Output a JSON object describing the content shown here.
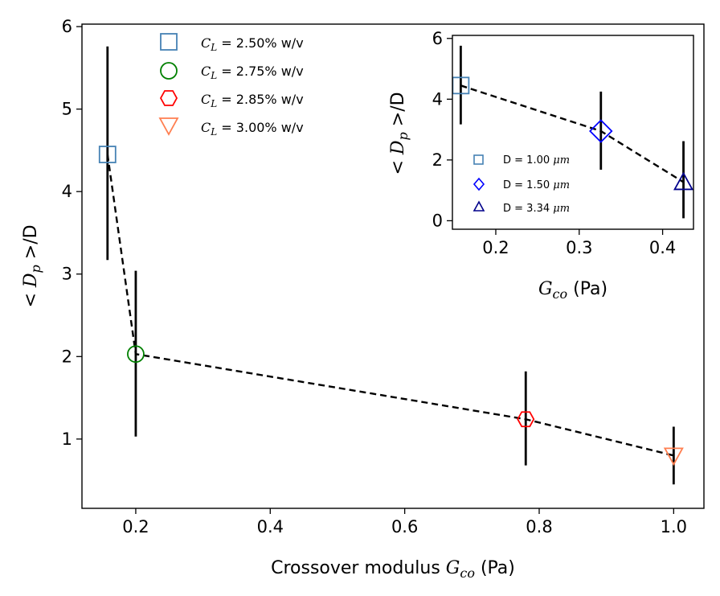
{
  "chart_data": [
    {
      "type": "scatter",
      "xlabel_main": "Crossover modulus ",
      "xlabel_var": "G",
      "xlabel_sub": "co",
      "xlabel_unit": " (Pa)",
      "ylabel_lt": "< ",
      "ylabel_var": "D",
      "ylabel_sub": "p",
      "ylabel_rest": " >/D",
      "xlim": [
        0.12,
        1.045
      ],
      "ylim": [
        0.16,
        6.03
      ],
      "xticks": [
        0.2,
        0.4,
        0.6,
        0.8,
        1.0
      ],
      "xtick_labels": [
        "0.2",
        "0.4",
        "0.6",
        "0.8",
        "1.0"
      ],
      "yticks": [
        1,
        2,
        3,
        4,
        5,
        6
      ],
      "ytick_labels": [
        "1",
        "2",
        "3",
        "4",
        "5",
        "6"
      ],
      "legend_position": "upper-center",
      "connecting_line": "dashed black",
      "series": [
        {
          "name_var": "C",
          "name_sub": "L",
          "name_rest": " = 2.50% w/v",
          "marker": "square",
          "color": "#4682b4",
          "x": 0.158,
          "y": 4.45,
          "yerr_low": 3.17,
          "yerr_high": 5.76
        },
        {
          "name_var": "C",
          "name_sub": "L",
          "name_rest": " = 2.75% w/v",
          "marker": "circle",
          "color": "#008000",
          "x": 0.2,
          "y": 2.03,
          "yerr_low": 1.03,
          "yerr_high": 3.04
        },
        {
          "name_var": "C",
          "name_sub": "L",
          "name_rest": " = 2.85% w/v",
          "marker": "hexagon",
          "color": "#ff0000",
          "x": 0.78,
          "y": 1.24,
          "yerr_low": 0.68,
          "yerr_high": 1.82
        },
        {
          "name_var": "C",
          "name_sub": "L",
          "name_rest": " = 3.00% w/v",
          "marker": "triangle-down",
          "color": "#ff7f50",
          "x": 1.0,
          "y": 0.8,
          "yerr_low": 0.45,
          "yerr_high": 1.15
        }
      ]
    },
    {
      "type": "scatter",
      "role": "inset",
      "xlabel_var": "G",
      "xlabel_sub": "co",
      "xlabel_unit": " (Pa)",
      "ylabel_lt": "< ",
      "ylabel_var": "D",
      "ylabel_sub": "p",
      "ylabel_rest": " >/D",
      "xlim": [
        0.148,
        0.437
      ],
      "ylim": [
        -0.28,
        6.1
      ],
      "xticks": [
        0.2,
        0.3,
        0.4
      ],
      "xtick_labels": [
        "0.2",
        "0.3",
        "0.4"
      ],
      "yticks": [
        0,
        2,
        4,
        6
      ],
      "ytick_labels": [
        "0",
        "2",
        "4",
        "6"
      ],
      "legend_position": "lower-left",
      "connecting_line": "dashed black",
      "series": [
        {
          "name_pre": "D = 1.00 ",
          "name_unit": "μm",
          "marker": "square",
          "color": "#4682b4",
          "x": 0.158,
          "y": 4.45,
          "yerr_low": 3.17,
          "yerr_high": 5.76
        },
        {
          "name_pre": "D = 1.50 ",
          "name_unit": "μm",
          "marker": "diamond",
          "color": "#0000ff",
          "x": 0.326,
          "y": 2.95,
          "yerr_low": 1.68,
          "yerr_high": 4.25
        },
        {
          "name_pre": "D = 3.34 ",
          "name_unit": "μm",
          "marker": "triangle-up",
          "color": "#00008b",
          "x": 0.425,
          "y": 1.27,
          "yerr_low": 0.08,
          "yerr_high": 2.62
        }
      ]
    }
  ]
}
